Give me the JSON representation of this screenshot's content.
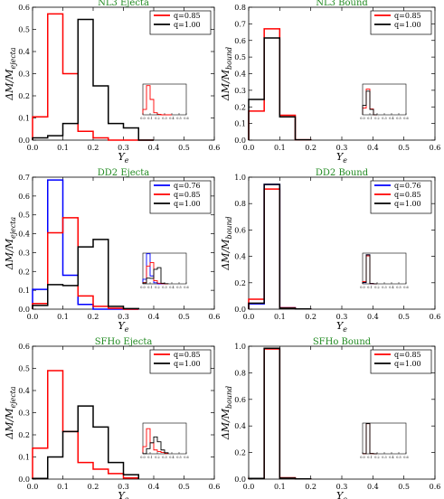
{
  "chart_data": [
    {
      "type": "histogram",
      "title": "NL3 Ejecta",
      "xlabel": "Y_e",
      "ylabel": "ΔM/M_ejecta",
      "xlim": [
        0,
        0.6
      ],
      "ylim": [
        0,
        0.6
      ],
      "xticks": [
        "0.0",
        "0.1",
        "0.2",
        "0.3",
        "0.4",
        "0.5",
        "0.6"
      ],
      "yticks": [
        "0.0",
        "0.1",
        "0.2",
        "0.3",
        "0.4",
        "0.5",
        "0.6"
      ],
      "bin_edges": [
        0,
        0.05,
        0.1,
        0.15,
        0.2,
        0.25,
        0.3,
        0.35,
        0.4
      ],
      "legend_position": "top-right",
      "series": [
        {
          "name": "q=0.85",
          "color": "#ff0000",
          "values": [
            0.105,
            0.57,
            0.3,
            0.04,
            0.01,
            0.0,
            0.0,
            0.0
          ]
        },
        {
          "name": "q=1.00",
          "color": "#000000",
          "values": [
            0.01,
            0.02,
            0.075,
            0.545,
            0.245,
            0.075,
            0.055,
            0.0
          ]
        }
      ],
      "inset": {
        "xticks": [
          "0.0",
          "0.1",
          "0.2",
          "0.3",
          "0.4",
          "0.5",
          "0.6"
        ],
        "ylim": [
          0,
          0.6
        ],
        "series": [
          {
            "color": "#ff0000",
            "values": [
              0.105,
              0.57,
              0.3,
              0.04,
              0.01,
              0.0,
              0.0,
              0.0
            ]
          }
        ]
      }
    },
    {
      "type": "histogram",
      "title": "NL3 Bound",
      "xlabel": "Y_e",
      "ylabel": "ΔM/M_bound",
      "xlim": [
        0,
        0.6
      ],
      "ylim": [
        0,
        0.8
      ],
      "xticks": [
        "0.0",
        "0.1",
        "0.2",
        "0.3",
        "0.4",
        "0.5",
        "0.6"
      ],
      "yticks": [
        "0.0",
        "0.1",
        "0.2",
        "0.3",
        "0.4",
        "0.5",
        "0.6",
        "0.7",
        "0.8"
      ],
      "bin_edges": [
        0,
        0.05,
        0.1,
        0.15,
        0.2
      ],
      "legend_position": "top-right",
      "series": [
        {
          "name": "q=0.85",
          "color": "#ff0000",
          "values": [
            0.175,
            0.67,
            0.15,
            0.002
          ]
        },
        {
          "name": "q=1.00",
          "color": "#000000",
          "values": [
            0.245,
            0.615,
            0.14,
            0.002
          ]
        }
      ],
      "inset": {
        "xticks": [
          "0.0",
          "0.1",
          "0.2",
          "0.3",
          "0.4",
          "0.5",
          "0.6"
        ],
        "ylim": [
          0,
          0.8
        ],
        "series": [
          {
            "color": "#ff0000",
            "values": [
              0.175,
              0.67,
              0.15,
              0.002
            ]
          },
          {
            "color": "#000000",
            "values": [
              0.245,
              0.615,
              0.14,
              0.002
            ]
          }
        ]
      }
    },
    {
      "type": "histogram",
      "title": "DD2 Ejecta",
      "xlabel": "Y_e",
      "ylabel": "ΔM/M_ejecta",
      "xlim": [
        0,
        0.6
      ],
      "ylim": [
        0,
        0.7
      ],
      "xticks": [
        "0.0",
        "0.1",
        "0.2",
        "0.3",
        "0.4",
        "0.5",
        "0.6"
      ],
      "yticks": [
        "0.0",
        "0.1",
        "0.2",
        "0.3",
        "0.4",
        "0.5",
        "0.6",
        "0.7"
      ],
      "bin_edges": [
        0,
        0.05,
        0.1,
        0.15,
        0.2,
        0.25,
        0.3,
        0.35
      ],
      "legend_position": "top-right",
      "series": [
        {
          "name": "q=0.76",
          "color": "#0000ff",
          "values": [
            0.105,
            0.685,
            0.18,
            0.025,
            0.0,
            0.0,
            0.0
          ]
        },
        {
          "name": "q=0.85",
          "color": "#ff0000",
          "values": [
            0.03,
            0.405,
            0.485,
            0.07,
            0.015,
            0.005,
            0.0
          ]
        },
        {
          "name": "q=1.00",
          "color": "#000000",
          "values": [
            0.02,
            0.13,
            0.125,
            0.33,
            0.37,
            0.015,
            0.003
          ]
        }
      ],
      "inset": {
        "xticks": [
          "0.0",
          "0.1",
          "0.2",
          "0.3",
          "0.4",
          "0.5",
          "0.6"
        ],
        "ylim": [
          0,
          0.7
        ],
        "series": [
          {
            "color": "#0000ff",
            "values": [
              0.105,
              0.685,
              0.18,
              0.025,
              0.0,
              0.0,
              0.0
            ]
          },
          {
            "color": "#ff0000",
            "values": [
              0.03,
              0.405,
              0.485,
              0.07,
              0.015,
              0.005,
              0.0
            ]
          },
          {
            "color": "#000000",
            "values": [
              0.02,
              0.13,
              0.125,
              0.33,
              0.37,
              0.015,
              0.003
            ]
          }
        ]
      }
    },
    {
      "type": "histogram",
      "title": "DD2 Bound",
      "xlabel": "Y_e",
      "ylabel": "ΔM/M_bound",
      "xlim": [
        0,
        0.6
      ],
      "ylim": [
        0,
        1.0
      ],
      "xticks": [
        "0.0",
        "0.1",
        "0.2",
        "0.3",
        "0.4",
        "0.5",
        "0.6"
      ],
      "yticks": [
        "0.0",
        "0.2",
        "0.4",
        "0.6",
        "0.8",
        "1.0"
      ],
      "bin_edges": [
        0,
        0.05,
        0.1,
        0.15,
        0.2
      ],
      "legend_position": "top-right",
      "series": [
        {
          "name": "q=0.76",
          "color": "#0000ff",
          "values": [
            0.04,
            0.945,
            0.01,
            0.002
          ]
        },
        {
          "name": "q=0.85",
          "color": "#ff0000",
          "values": [
            0.075,
            0.91,
            0.01,
            0.002
          ]
        },
        {
          "name": "q=1.00",
          "color": "#000000",
          "values": [
            0.045,
            0.945,
            0.008,
            0.002
          ]
        }
      ],
      "inset": {
        "xticks": [
          "0.0",
          "0.1",
          "0.2",
          "0.3",
          "0.4",
          "0.5",
          "0.6"
        ],
        "ylim": [
          0,
          1.0
        ],
        "series": [
          {
            "color": "#0000ff",
            "values": [
              0.04,
              0.945,
              0.01,
              0.002
            ]
          },
          {
            "color": "#ff0000",
            "values": [
              0.075,
              0.91,
              0.01,
              0.002
            ]
          },
          {
            "color": "#000000",
            "values": [
              0.045,
              0.945,
              0.008,
              0.002
            ]
          }
        ]
      }
    },
    {
      "type": "histogram",
      "title": "SFHo Ejecta",
      "xlabel": "Y_e",
      "ylabel": "ΔM/M_ejecta",
      "xlim": [
        0,
        0.6
      ],
      "ylim": [
        0,
        0.6
      ],
      "xticks": [
        "0.0",
        "0.1",
        "0.2",
        "0.3",
        "0.4",
        "0.5",
        "0.6"
      ],
      "yticks": [
        "0.0",
        "0.1",
        "0.2",
        "0.3",
        "0.4",
        "0.5",
        "0.6"
      ],
      "bin_edges": [
        0,
        0.05,
        0.1,
        0.15,
        0.2,
        0.25,
        0.3,
        0.35
      ],
      "legend_position": "top-right",
      "series": [
        {
          "name": "q=0.85",
          "color": "#ff0000",
          "values": [
            0.14,
            0.49,
            0.215,
            0.075,
            0.045,
            0.025,
            0.005
          ]
        },
        {
          "name": "q=1.00",
          "color": "#000000",
          "values": [
            0.003,
            0.1,
            0.215,
            0.33,
            0.235,
            0.075,
            0.02
          ]
        }
      ],
      "inset": {
        "xticks": [
          "0.0",
          "0.1",
          "0.2",
          "0.3",
          "0.4",
          "0.5",
          "0.6"
        ],
        "ylim": [
          0,
          0.6
        ],
        "series": [
          {
            "color": "#ff0000",
            "values": [
              0.14,
              0.49,
              0.215,
              0.075,
              0.045,
              0.025,
              0.005
            ]
          },
          {
            "color": "#000000",
            "values": [
              0.003,
              0.1,
              0.215,
              0.33,
              0.235,
              0.075,
              0.02
            ]
          }
        ]
      }
    },
    {
      "type": "histogram",
      "title": "SFHo Bound",
      "xlabel": "Y_e",
      "ylabel": "ΔM/M_bound",
      "xlim": [
        0,
        0.6
      ],
      "ylim": [
        0,
        1.0
      ],
      "xticks": [
        "0.0",
        "0.1",
        "0.2",
        "0.3",
        "0.4",
        "0.5",
        "0.6"
      ],
      "yticks": [
        "0.0",
        "0.2",
        "0.4",
        "0.6",
        "0.8",
        "1.0"
      ],
      "bin_edges": [
        0,
        0.05,
        0.1,
        0.15,
        0.2
      ],
      "legend_position": "top-right",
      "series": [
        {
          "name": "q=0.85",
          "color": "#ff0000",
          "values": [
            0.005,
            0.98,
            0.01,
            0.002
          ]
        },
        {
          "name": "q=1.00",
          "color": "#000000",
          "values": [
            0.005,
            0.985,
            0.008,
            0.002
          ]
        }
      ],
      "inset": {
        "xticks": [
          "0.0",
          "0.1",
          "0.2",
          "0.3",
          "0.4",
          "0.5",
          "0.6"
        ],
        "ylim": [
          0,
          1.0
        ],
        "series": [
          {
            "color": "#ff0000",
            "values": [
              0.005,
              0.98,
              0.01,
              0.002
            ]
          },
          {
            "color": "#000000",
            "values": [
              0.005,
              0.985,
              0.008,
              0.002
            ]
          }
        ]
      }
    }
  ]
}
